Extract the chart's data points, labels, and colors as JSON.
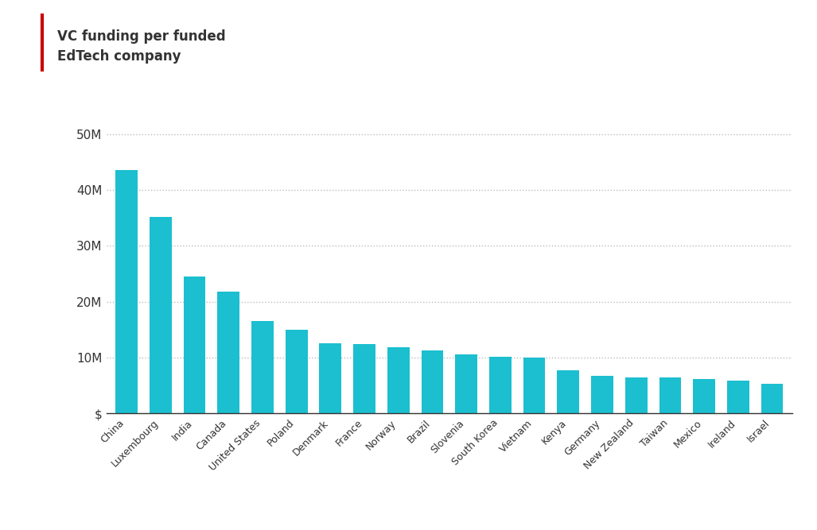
{
  "categories": [
    "China",
    "Luxembourg",
    "India",
    "Canada",
    "United States",
    "Poland",
    "Denmark",
    "France",
    "Norway",
    "Brazil",
    "Slovenia",
    "South Korea",
    "Vietnam",
    "Kenya",
    "Germany",
    "New Zealand",
    "Taiwan",
    "Mexico",
    "Ireland",
    "Israel"
  ],
  "values": [
    43500000,
    35200000,
    24500000,
    21800000,
    16500000,
    15000000,
    12500000,
    12400000,
    11800000,
    11200000,
    10600000,
    10200000,
    10000000,
    7700000,
    6700000,
    6500000,
    6500000,
    6200000,
    5900000,
    5300000
  ],
  "bar_color": "#1BBFCF",
  "background_color": "#ffffff",
  "title_line1": "VC funding per funded",
  "title_line2": "EdTech company",
  "title_color": "#333333",
  "title_bar_color": "#cc0000",
  "ytick_labels": [
    "$",
    "10M",
    "20M",
    "30M",
    "40M",
    "50M"
  ],
  "ytick_values": [
    0,
    10000000,
    20000000,
    30000000,
    40000000,
    50000000
  ],
  "ylim": [
    0,
    55000000
  ],
  "grid_color": "#bbbbbb",
  "axis_color": "#333333",
  "label_fontsize": 9,
  "title_fontsize": 12
}
